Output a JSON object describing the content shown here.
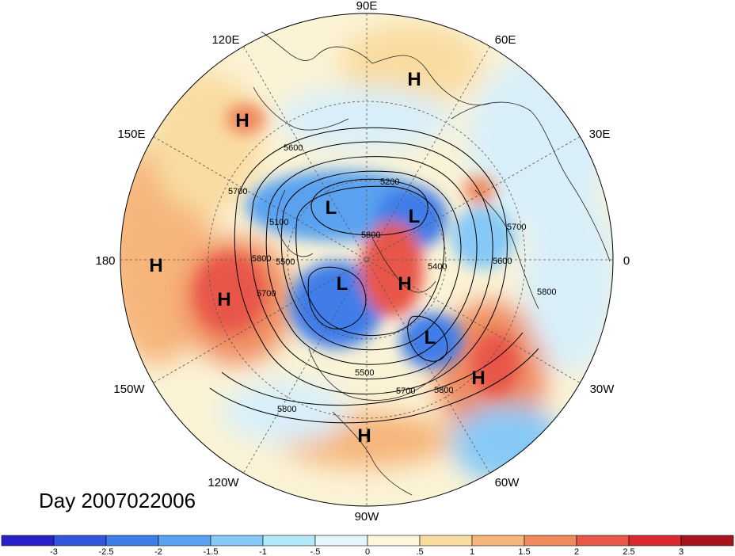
{
  "title": "Day 2007022006",
  "longitude_labels": [
    "90E",
    "60E",
    "30E",
    "0",
    "30W",
    "60W",
    "90W",
    "120W",
    "150W",
    "180",
    "150E",
    "120E"
  ],
  "pressure_systems": [
    "H",
    "H",
    "L",
    "L",
    "L",
    "L",
    "H",
    "H",
    "H",
    "H",
    "H",
    "H"
  ],
  "contour_labels": [
    "5200",
    "5600",
    "5700",
    "5100",
    "5500",
    "5800",
    "5700",
    "5500",
    "5700",
    "5800",
    "5800",
    "5800",
    "5700",
    "5600",
    "5800",
    "5400"
  ],
  "colorbar": {
    "ticks": [
      "-3",
      "-2.5",
      "-2",
      "-1.5",
      "-1",
      "-.5",
      "0",
      ".5",
      "1",
      "1.5",
      "2",
      "2.5",
      "3"
    ],
    "colors": [
      "#2a20c8",
      "#2f56dc",
      "#3f7de8",
      "#5aa2f0",
      "#86c9f6",
      "#b3e8f8",
      "#e2f6fb",
      "#fcf6dc",
      "#f9dca0",
      "#f6b57a",
      "#ef8a5e",
      "#e8574a",
      "#d92b2f",
      "#a8141e"
    ]
  }
}
